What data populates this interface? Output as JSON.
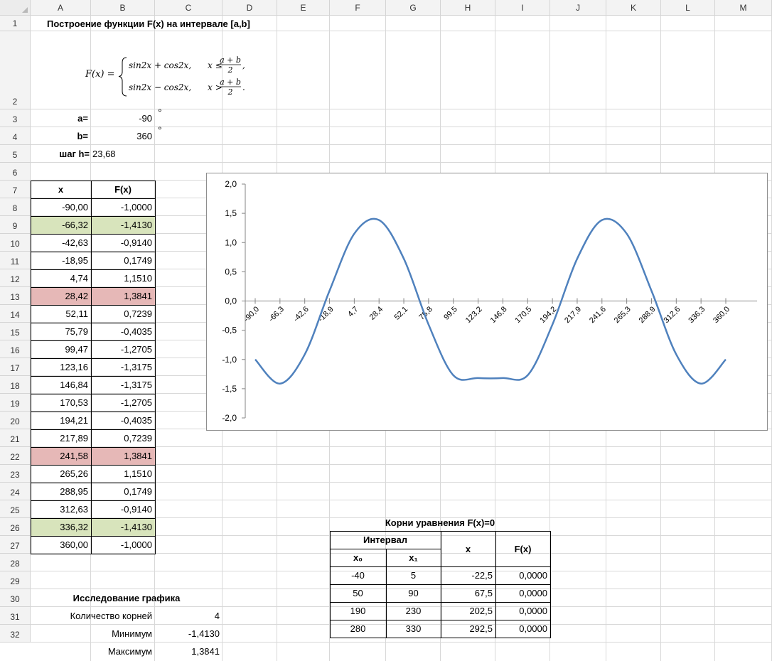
{
  "columns": [
    "A",
    "B",
    "C",
    "D",
    "E",
    "F",
    "G",
    "H",
    "I",
    "J",
    "K",
    "L",
    "M"
  ],
  "rows": [
    "1",
    "2",
    "3",
    "4",
    "5",
    "6",
    "7",
    "8",
    "9",
    "10",
    "11",
    "12",
    "13",
    "14",
    "15",
    "16",
    "17",
    "18",
    "19",
    "20",
    "21",
    "22",
    "23",
    "24",
    "25",
    "26",
    "27",
    "28",
    "29",
    "30",
    "31",
    "32"
  ],
  "title": "Построение функции F(x) на интервале [a,b]",
  "formula": {
    "lhs": "F(x) =",
    "case1_expr": "sin2x + cos2x,",
    "case1_cond": "x ≤",
    "case2_expr": "sin2x − cos2x,",
    "case2_cond": "x >",
    "frac_num": "a + b",
    "frac_den": "2",
    "end1": ",",
    "end2": "."
  },
  "params": {
    "a_label": "a=",
    "a_value": "-90",
    "a_unit": "°",
    "b_label": "b=",
    "b_value": "360",
    "b_unit": "°",
    "h_label": "шаг h=",
    "h_value": "23,68"
  },
  "table": {
    "headers": [
      "x",
      "F(x)"
    ],
    "rows": [
      {
        "x": "-90,00",
        "f": "-1,0000",
        "hl": ""
      },
      {
        "x": "-66,32",
        "f": "-1,4130",
        "hl": "green"
      },
      {
        "x": "-42,63",
        "f": "-0,9140",
        "hl": ""
      },
      {
        "x": "-18,95",
        "f": "0,1749",
        "hl": ""
      },
      {
        "x": "4,74",
        "f": "1,1510",
        "hl": ""
      },
      {
        "x": "28,42",
        "f": "1,3841",
        "hl": "red"
      },
      {
        "x": "52,11",
        "f": "0,7239",
        "hl": ""
      },
      {
        "x": "75,79",
        "f": "-0,4035",
        "hl": ""
      },
      {
        "x": "99,47",
        "f": "-1,2705",
        "hl": ""
      },
      {
        "x": "123,16",
        "f": "-1,3175",
        "hl": ""
      },
      {
        "x": "146,84",
        "f": "-1,3175",
        "hl": ""
      },
      {
        "x": "170,53",
        "f": "-1,2705",
        "hl": ""
      },
      {
        "x": "194,21",
        "f": "-0,4035",
        "hl": ""
      },
      {
        "x": "217,89",
        "f": "0,7239",
        "hl": ""
      },
      {
        "x": "241,58",
        "f": "1,3841",
        "hl": "red"
      },
      {
        "x": "265,26",
        "f": "1,1510",
        "hl": ""
      },
      {
        "x": "288,95",
        "f": "0,1749",
        "hl": ""
      },
      {
        "x": "312,63",
        "f": "-0,9140",
        "hl": ""
      },
      {
        "x": "336,32",
        "f": "-1,4130",
        "hl": "green"
      },
      {
        "x": "360,00",
        "f": "-1,0000",
        "hl": ""
      }
    ]
  },
  "analysis": {
    "title": "Исследование графика",
    "roots_label": "Количество корней",
    "roots_value": "4",
    "min_label": "Минимум",
    "min_value": "-1,4130",
    "max_label": "Максимум",
    "max_value": "1,3841"
  },
  "roots_table": {
    "title": "Корни уравнения F(x)=0",
    "interval_header": "Интервал",
    "x0_header": "x₀",
    "x1_header": "x₁",
    "x_header": "x",
    "f_header": "F(x)",
    "rows": [
      {
        "x0": "-40",
        "x1": "5",
        "x": "-22,5",
        "f": "0,0000"
      },
      {
        "x0": "50",
        "x1": "90",
        "x": "67,5",
        "f": "0,0000"
      },
      {
        "x0": "190",
        "x1": "230",
        "x": "202,5",
        "f": "0,0000"
      },
      {
        "x0": "280",
        "x1": "330",
        "x": "292,5",
        "f": "0,0000"
      }
    ]
  },
  "chart_data": {
    "type": "line",
    "title": "",
    "xlabel": "",
    "ylabel": "",
    "categories": [
      "-90,0",
      "-66,3",
      "-42,6",
      "-18,9",
      "4,7",
      "28,4",
      "52,1",
      "75,8",
      "99,5",
      "123,2",
      "146,8",
      "170,5",
      "194,2",
      "217,9",
      "241,6",
      "265,3",
      "288,9",
      "312,6",
      "336,3",
      "360,0"
    ],
    "series": [
      {
        "values": [
          -1.0,
          -1.413,
          -0.914,
          0.1749,
          1.151,
          1.3841,
          0.7239,
          -0.4035,
          -1.2705,
          -1.3175,
          -1.3175,
          -1.2705,
          -0.4035,
          0.7239,
          1.3841,
          1.151,
          0.1749,
          -0.914,
          -1.413,
          -1.0
        ],
        "color": "#4f81bd"
      }
    ],
    "ylim": [
      -2.0,
      2.0
    ],
    "yticks": [
      "2,0",
      "1,5",
      "1,0",
      "0,5",
      "0,0",
      "-0,5",
      "-1,0",
      "-1,5",
      "-2,0"
    ],
    "grid": false,
    "legend": "none"
  }
}
